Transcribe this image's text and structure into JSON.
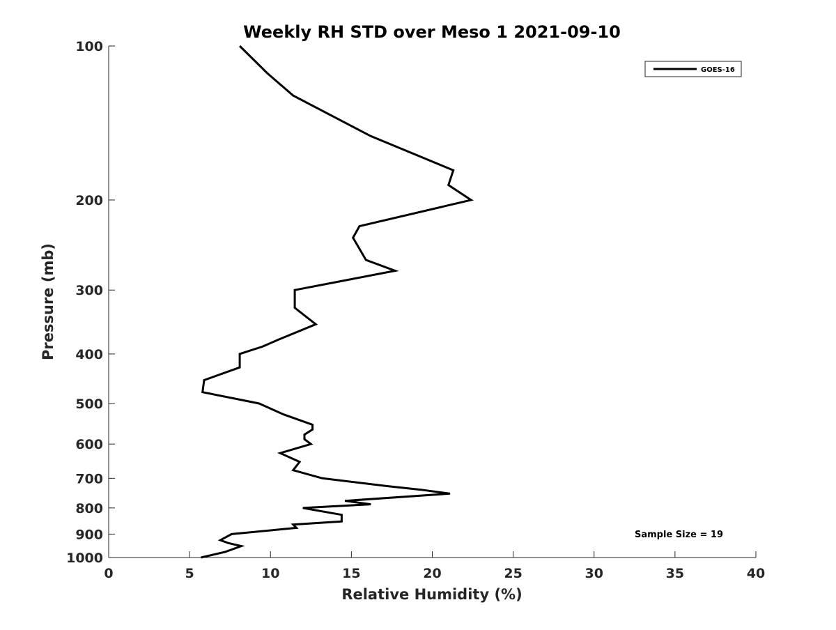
{
  "chart_data": {
    "type": "line",
    "title": "Weekly RH STD over Meso 1 2021-09-10",
    "xlabel": "Relative Humidity (%)",
    "ylabel": "Pressure (mb)",
    "xlim": [
      0,
      40
    ],
    "ylim": [
      100,
      1000
    ],
    "y_scale": "log",
    "y_reversed": true,
    "x_ticks": [
      0,
      5,
      10,
      15,
      20,
      25,
      30,
      35,
      40
    ],
    "y_ticks": [
      100,
      200,
      300,
      400,
      500,
      600,
      700,
      800,
      900,
      1000
    ],
    "grid": false,
    "legend_position": "top-right",
    "annotation": "Sample Size = 19",
    "series": [
      {
        "name": "GOES-16",
        "color": "#000000",
        "points": [
          [
            8.1,
            100
          ],
          [
            9.8,
            113
          ],
          [
            11.4,
            125
          ],
          [
            16.2,
            150
          ],
          [
            21.3,
            175
          ],
          [
            21.0,
            187
          ],
          [
            22.4,
            200
          ],
          [
            15.5,
            225
          ],
          [
            15.1,
            237
          ],
          [
            15.9,
            262
          ],
          [
            17.7,
            275
          ],
          [
            11.5,
            300
          ],
          [
            11.5,
            325
          ],
          [
            12.8,
            350
          ],
          [
            10.5,
            375
          ],
          [
            9.5,
            387
          ],
          [
            8.1,
            400
          ],
          [
            8.1,
            425
          ],
          [
            5.9,
            450
          ],
          [
            5.8,
            475
          ],
          [
            9.3,
            500
          ],
          [
            10.8,
            525
          ],
          [
            12.6,
            550
          ],
          [
            12.6,
            562
          ],
          [
            12.1,
            575
          ],
          [
            12.1,
            587
          ],
          [
            12.5,
            600
          ],
          [
            10.6,
            625
          ],
          [
            11.8,
            650
          ],
          [
            11.4,
            675
          ],
          [
            13.2,
            700
          ],
          [
            17.2,
            725
          ],
          [
            19.3,
            737
          ],
          [
            21.1,
            750
          ],
          [
            14.6,
            775
          ],
          [
            16.2,
            787
          ],
          [
            12.0,
            800
          ],
          [
            14.4,
            825
          ],
          [
            14.4,
            850
          ],
          [
            11.4,
            862
          ],
          [
            11.6,
            875
          ],
          [
            7.6,
            900
          ],
          [
            6.9,
            925
          ],
          [
            7.4,
            937
          ],
          [
            8.2,
            950
          ],
          [
            7.2,
            975
          ],
          [
            5.7,
            1000
          ]
        ]
      }
    ]
  }
}
